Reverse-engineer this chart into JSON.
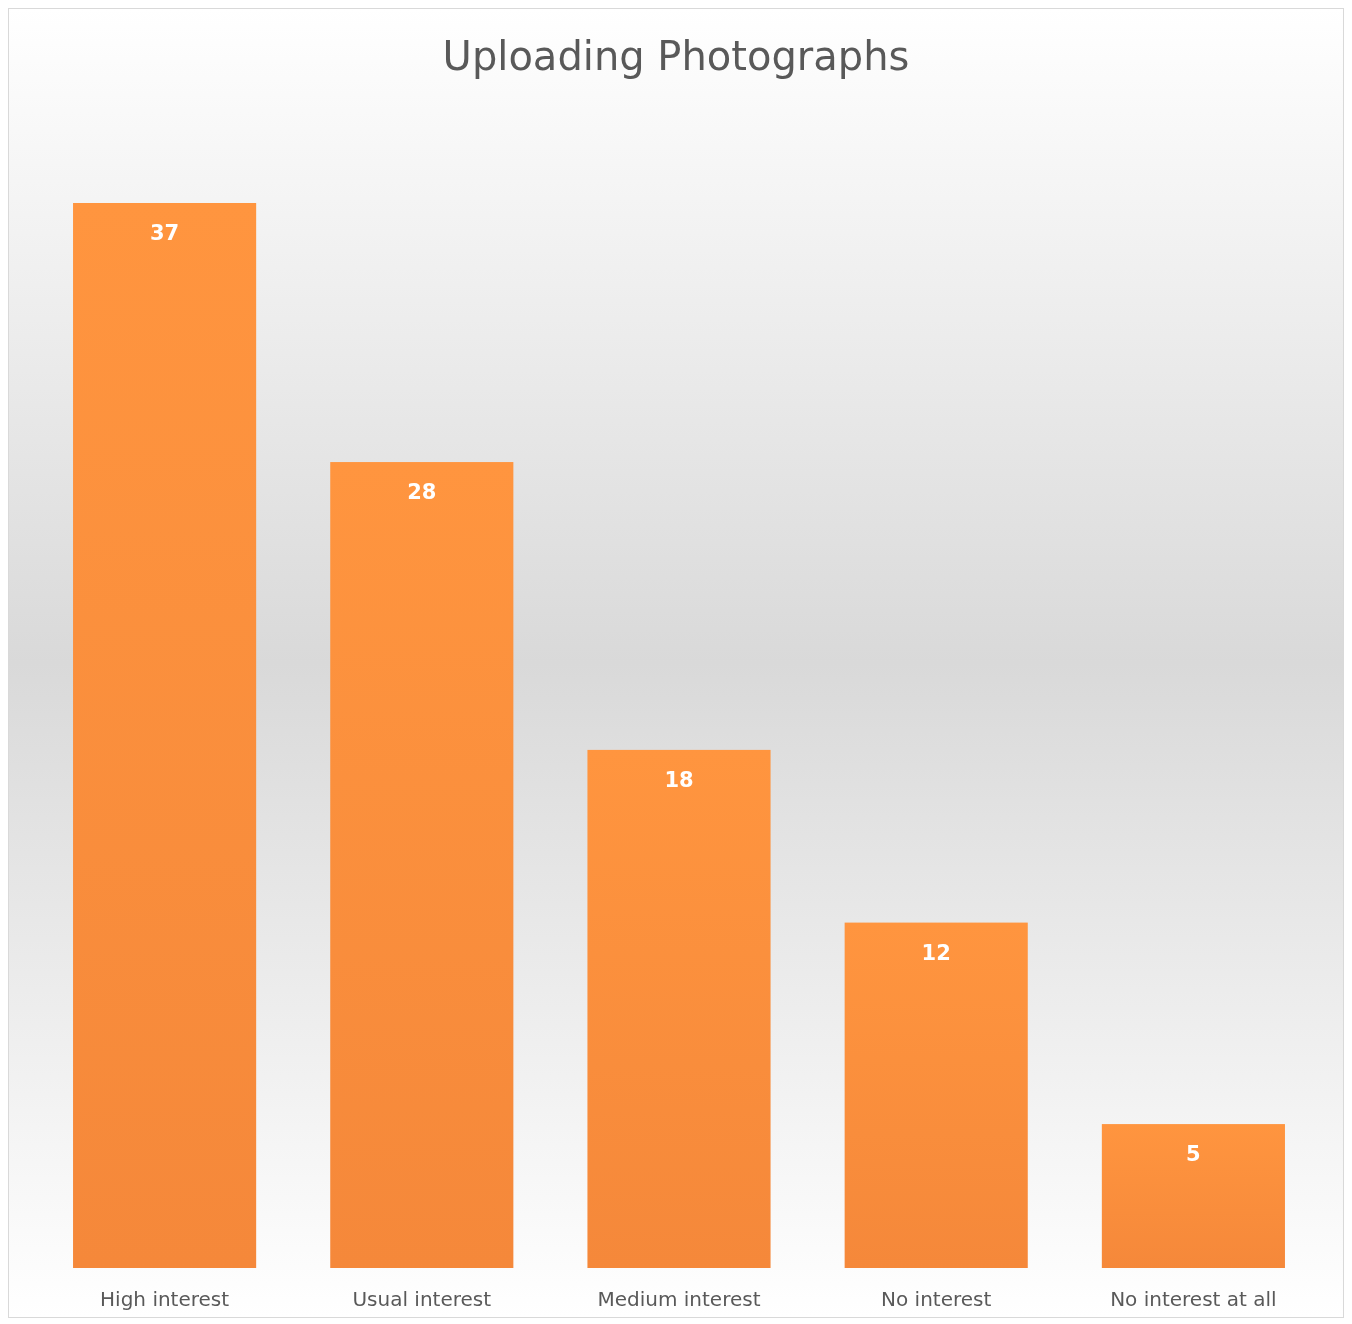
{
  "chart_data": {
    "type": "bar",
    "title": "Uploading Photographs",
    "categories": [
      "High interest",
      "Usual interest",
      "Medium interest",
      "No interest",
      "No interest at all"
    ],
    "values": [
      37,
      28,
      18,
      12,
      5
    ],
    "color": "#f5883a",
    "data_labels": true
  }
}
